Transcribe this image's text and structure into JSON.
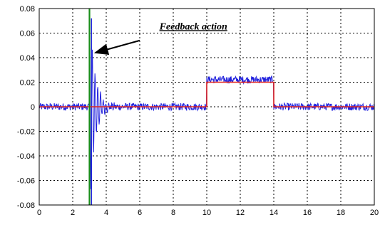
{
  "chart_data": {
    "type": "line",
    "xlim": [
      0,
      20
    ],
    "ylim": [
      -0.08,
      0.08
    ],
    "x_ticks": [
      "0",
      "2",
      "4",
      "6",
      "8",
      "10",
      "12",
      "14",
      "16",
      "18",
      "20"
    ],
    "y_ticks": [
      "0.08",
      "0.06",
      "0.04",
      "0.02",
      "0",
      "-0.02",
      "-0.04",
      "-0.06",
      "-0.08"
    ],
    "grid": true,
    "series": [
      {
        "color": "#2222dd",
        "noise_amplitude": 0.003,
        "segments": [
          {
            "x_start": 0,
            "x_end": 3.0,
            "level": 0
          },
          {
            "x_start": 3.0,
            "x_end": 10.0,
            "level": 0,
            "feedback_transient": true
          },
          {
            "x_start": 10.0,
            "x_end": 14.0,
            "level": 0.022
          },
          {
            "x_start": 14.0,
            "x_end": 20.0,
            "level": 0
          }
        ]
      },
      {
        "color": "#e2241d",
        "points": [
          [
            0,
            0
          ],
          [
            10,
            0
          ],
          [
            10,
            0.02
          ],
          [
            14,
            0.02
          ],
          [
            14,
            0
          ],
          [
            20,
            0
          ]
        ]
      },
      {
        "color": "#1a8f1a",
        "vertical_at_x": 3.0
      }
    ],
    "annotation": {
      "text": "Feedback action",
      "text_at": [
        9.2,
        0.063
      ],
      "arrow_from": [
        6.0,
        0.054
      ],
      "arrow_to": [
        3.35,
        0.044
      ]
    }
  }
}
